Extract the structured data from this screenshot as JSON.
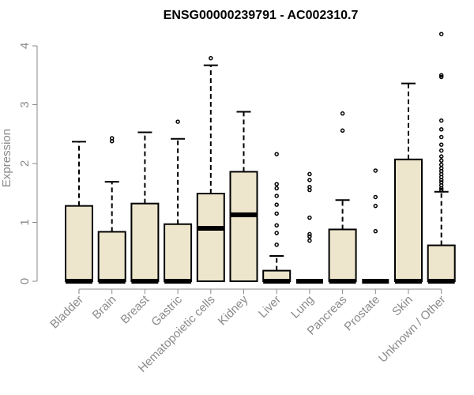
{
  "chart_data": {
    "type": "box",
    "title": "ENSG00000239791 - AC002310.7",
    "xlabel": "",
    "ylabel": "Expression",
    "ylim": [
      0,
      4
    ],
    "yticks": [
      0,
      1,
      2,
      3,
      4
    ],
    "colors": {
      "box_fill": "#ede6cc",
      "axis": "#8a8a8a"
    },
    "categories": [
      "Bladder",
      "Brain",
      "Breast",
      "Gastric",
      "Hematopoietic cells",
      "Kidney",
      "Liver",
      "Lung",
      "Pancreas",
      "Prostate",
      "Skin",
      "Unknown / Other"
    ],
    "boxes": [
      {
        "category": "Bladder",
        "q1": 0,
        "median": 0,
        "q3": 1.28,
        "whisker_low": 0,
        "whisker_high": 2.37,
        "outliers": []
      },
      {
        "category": "Brain",
        "q1": 0,
        "median": 0,
        "q3": 0.84,
        "whisker_low": 0,
        "whisker_high": 1.69,
        "outliers": [
          2.38,
          2.43
        ]
      },
      {
        "category": "Breast",
        "q1": 0,
        "median": 0,
        "q3": 1.32,
        "whisker_low": 0,
        "whisker_high": 2.53,
        "outliers": []
      },
      {
        "category": "Gastric",
        "q1": 0,
        "median": 0,
        "q3": 0.97,
        "whisker_low": 0,
        "whisker_high": 2.42,
        "outliers": [
          2.71
        ]
      },
      {
        "category": "Hematopoietic cells",
        "q1": 0,
        "median": 0.9,
        "q3": 1.49,
        "whisker_low": 0,
        "whisker_high": 3.67,
        "outliers": [
          3.79
        ]
      },
      {
        "category": "Kidney",
        "q1": 0,
        "median": 1.13,
        "q3": 1.86,
        "whisker_low": 0,
        "whisker_high": 2.88,
        "outliers": []
      },
      {
        "category": "Liver",
        "q1": 0,
        "median": 0,
        "q3": 0.18,
        "whisker_low": 0,
        "whisker_high": 0.43,
        "outliers": [
          0.62,
          0.82,
          0.95,
          1.15,
          1.3,
          1.45,
          1.58,
          1.65,
          2.16
        ]
      },
      {
        "category": "Lung",
        "q1": 0,
        "median": 0,
        "q3": 0,
        "whisker_low": 0,
        "whisker_high": 0,
        "outliers": [
          0.69,
          0.76,
          0.8,
          1.08,
          1.55,
          1.6,
          1.72,
          1.82
        ]
      },
      {
        "category": "Pancreas",
        "q1": 0,
        "median": 0,
        "q3": 0.88,
        "whisker_low": 0,
        "whisker_high": 1.38,
        "outliers": [
          2.56,
          2.85
        ]
      },
      {
        "category": "Prostate",
        "q1": 0,
        "median": 0,
        "q3": 0,
        "whisker_low": 0,
        "whisker_high": 0,
        "outliers": [
          0.85,
          1.28,
          1.43,
          1.88
        ]
      },
      {
        "category": "Skin",
        "q1": 0,
        "median": 0,
        "q3": 2.07,
        "whisker_low": 0,
        "whisker_high": 3.36,
        "outliers": []
      },
      {
        "category": "Unknown / Other",
        "q1": 0,
        "median": 0,
        "q3": 0.61,
        "whisker_low": 0,
        "whisker_high": 1.52,
        "outliers": [
          1.55,
          1.58,
          1.63,
          1.68,
          1.72,
          1.77,
          1.82,
          1.87,
          1.92,
          1.98,
          2.05,
          2.12,
          2.22,
          2.32,
          2.45,
          2.58,
          2.73,
          3.47,
          3.5,
          4.2
        ]
      }
    ]
  }
}
